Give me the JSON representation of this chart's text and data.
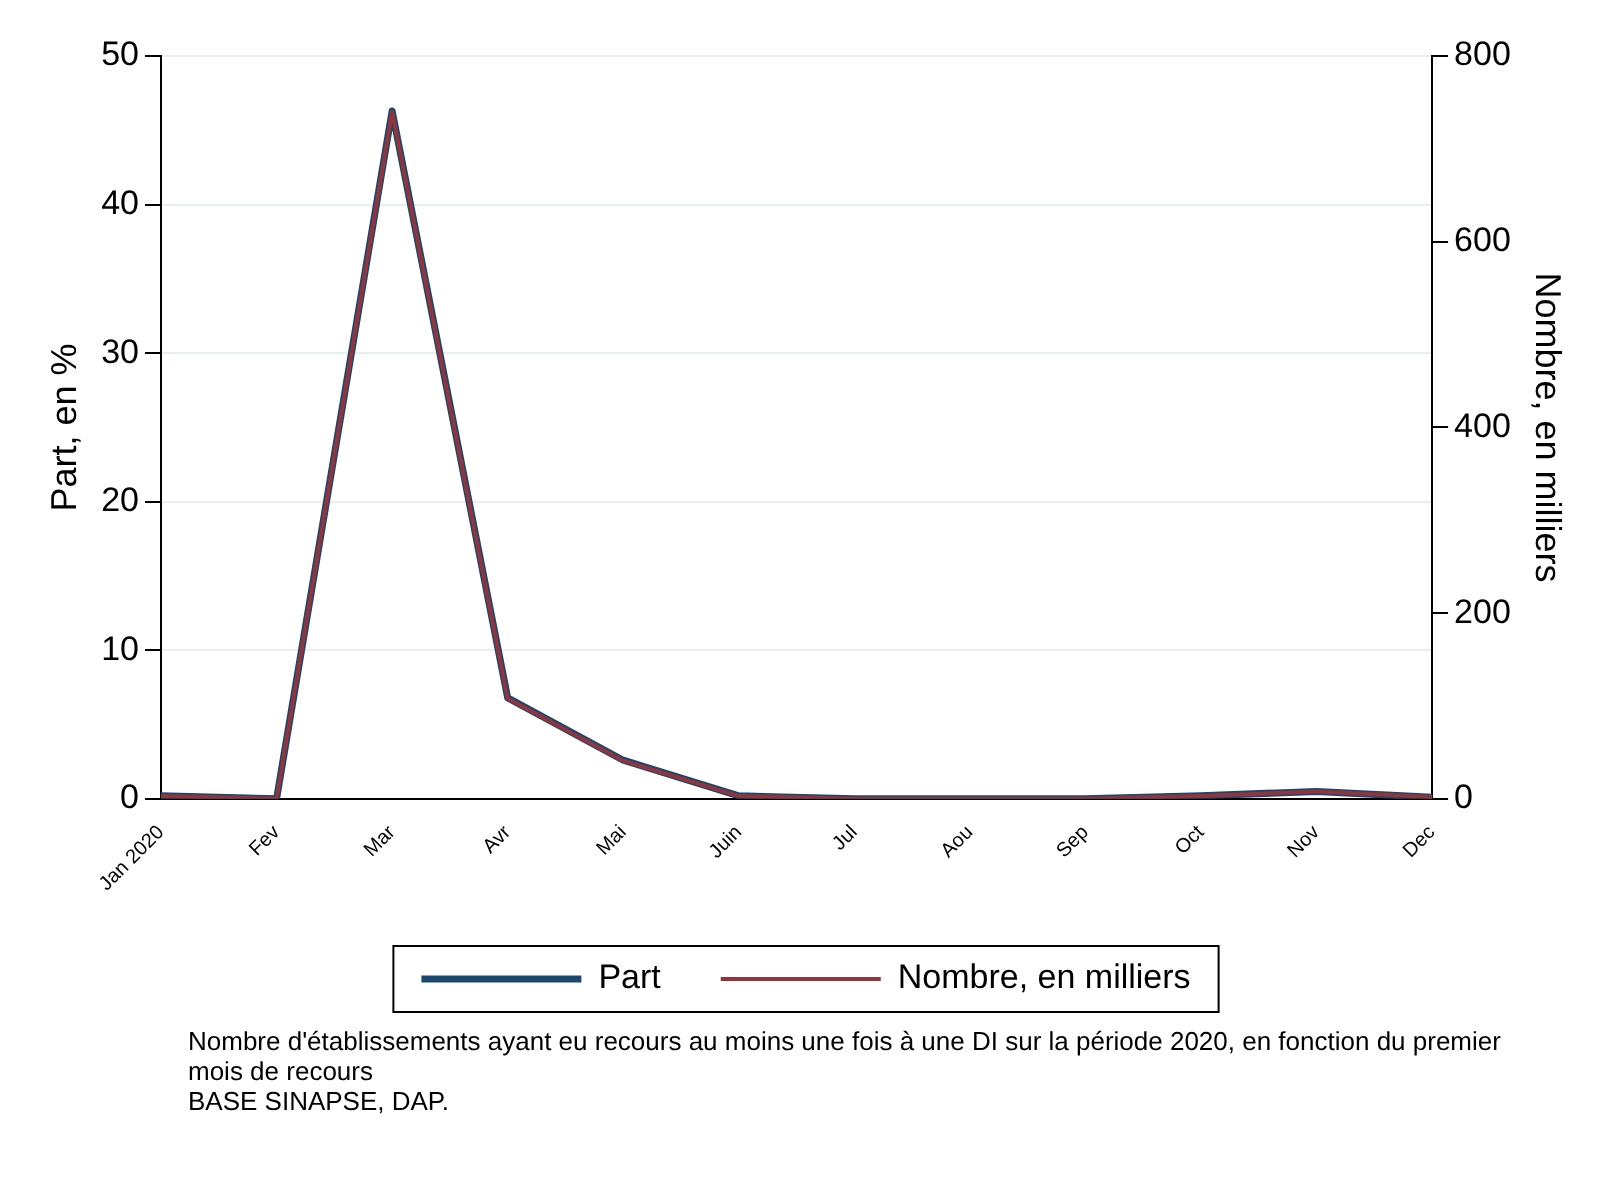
{
  "chart_data": {
    "type": "line",
    "xlabel": null,
    "ylabel": "Part, en %",
    "y2label": "Nombre, en milliers",
    "categories": [
      "Jan 2020",
      "Fev",
      "Mar",
      "Avr",
      "Mai",
      "Juin",
      "Jul",
      "Aou",
      "Sep",
      "Oct",
      "Nov",
      "Dec"
    ],
    "series": [
      {
        "name": "Part",
        "color": "#1a476f",
        "values": [
          0.2,
          0,
          46.3,
          6.8,
          2.6,
          0.2,
          0,
          0,
          0,
          0.2,
          0.5,
          0.1
        ]
      },
      {
        "name": "Nombre, en milliers",
        "color": "#90353b",
        "axis": "y2",
        "values": [
          3,
          0,
          740,
          108,
          41,
          3,
          0,
          0,
          0,
          3,
          8,
          2
        ]
      }
    ],
    "ylim": [
      0,
      50
    ],
    "yticks": [
      0,
      10,
      20,
      30,
      40,
      50
    ],
    "y2lim": [
      0,
      800
    ],
    "y2ticks": [
      0,
      200,
      400,
      600,
      800
    ],
    "grid": "y",
    "legend": "bottom",
    "marker": "none",
    "line_style": "solid",
    "annotations": [
      "Nombre d'établissements ayant eu recours au moins une fois à une DI sur la période 2020, en fonction du premier mois de recours",
      "BASE SINAPSE, DAP."
    ]
  }
}
